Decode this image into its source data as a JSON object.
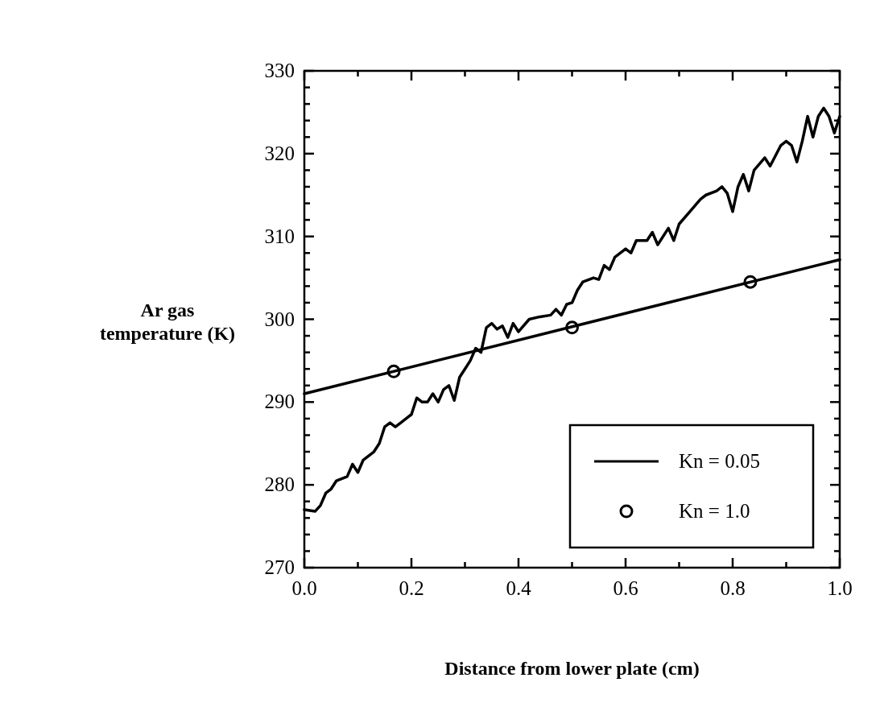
{
  "chart_data": {
    "type": "line",
    "xlabel": "Distance from lower plate (cm)",
    "ylabel": "Ar gas temperature (K)",
    "xlim": [
      0,
      1
    ],
    "ylim": [
      270,
      330
    ],
    "xticks": [
      {
        "value": 0,
        "label": "0.0"
      },
      {
        "value": 0.1,
        "label": null
      },
      {
        "value": 0.2,
        "label": "0.2"
      },
      {
        "value": 0.3,
        "label": null
      },
      {
        "value": 0.4,
        "label": "0.4"
      },
      {
        "value": 0.5,
        "label": null
      },
      {
        "value": 0.6,
        "label": "0.6"
      },
      {
        "value": 0.7,
        "label": null
      },
      {
        "value": 0.8,
        "label": "0.8"
      },
      {
        "value": 0.9,
        "label": null
      },
      {
        "value": 1,
        "label": "1.0"
      }
    ],
    "yticks": [
      270,
      {
        "value": 272,
        "label": null
      },
      {
        "value": 274,
        "label": null
      },
      {
        "value": 276,
        "label": null
      },
      {
        "value": 278,
        "label": null
      },
      280,
      {
        "value": 282,
        "label": null
      },
      {
        "value": 284,
        "label": null
      },
      {
        "value": 286,
        "label": null
      },
      {
        "value": 288,
        "label": null
      },
      290,
      {
        "value": 292,
        "label": null
      },
      {
        "value": 294,
        "label": null
      },
      {
        "value": 296,
        "label": null
      },
      {
        "value": 298,
        "label": null
      },
      300,
      {
        "value": 302,
        "label": null
      },
      {
        "value": 304,
        "label": null
      },
      {
        "value": 306,
        "label": null
      },
      {
        "value": 308,
        "label": null
      },
      310,
      {
        "value": 312,
        "label": null
      },
      {
        "value": 314,
        "label": null
      },
      {
        "value": 316,
        "label": null
      },
      {
        "value": 318,
        "label": null
      },
      320,
      {
        "value": 322,
        "label": null
      },
      {
        "value": 324,
        "label": null
      },
      {
        "value": 326,
        "label": null
      },
      {
        "value": 328,
        "label": null
      },
      330
    ],
    "legend": "bottom right",
    "series": [
      {
        "name": "Kn = 0.05",
        "color": "#000000",
        "marker": "none",
        "line_style": "solid",
        "x": [
          0,
          0.02,
          0.03,
          0.04,
          0.05,
          0.06,
          0.08,
          0.09,
          0.1,
          0.11,
          0.13,
          0.14,
          0.15,
          0.16,
          0.17,
          0.18,
          0.19,
          0.2,
          0.21,
          0.22,
          0.23,
          0.24,
          0.25,
          0.26,
          0.27,
          0.28,
          0.29,
          0.3,
          0.31,
          0.32,
          0.33,
          0.34,
          0.35,
          0.36,
          0.37,
          0.38,
          0.39,
          0.4,
          0.42,
          0.44,
          0.46,
          0.47,
          0.48,
          0.49,
          0.5,
          0.51,
          0.52,
          0.54,
          0.55,
          0.56,
          0.57,
          0.58,
          0.6,
          0.61,
          0.62,
          0.64,
          0.65,
          0.66,
          0.68,
          0.69,
          0.7,
          0.72,
          0.74,
          0.75,
          0.77,
          0.78,
          0.79,
          0.8,
          0.81,
          0.82,
          0.83,
          0.84,
          0.86,
          0.87,
          0.89,
          0.9,
          0.91,
          0.92,
          0.93,
          0.94,
          0.95,
          0.96,
          0.97,
          0.98,
          0.99,
          1
        ],
        "values": [
          277,
          276.8,
          277.5,
          279,
          279.5,
          280.5,
          281,
          282.5,
          281.5,
          283,
          284,
          285,
          287,
          287.5,
          287,
          287.5,
          288,
          288.5,
          290.5,
          290,
          290,
          291,
          290,
          291.5,
          292,
          290.2,
          293,
          294,
          295,
          296.5,
          296,
          299,
          299.5,
          298.8,
          299.2,
          297.8,
          299.5,
          298.5,
          300,
          300.3,
          300.5,
          301.2,
          300.5,
          301.8,
          302,
          303.5,
          304.5,
          305,
          304.8,
          306.5,
          306,
          307.5,
          308.5,
          308,
          309.5,
          309.5,
          310.5,
          309,
          311,
          309.5,
          311.5,
          313,
          314.5,
          315,
          315.5,
          316,
          315.2,
          313,
          316,
          317.5,
          315.5,
          318,
          319.5,
          318.5,
          321,
          321.5,
          321,
          319,
          321.5,
          324.5,
          322,
          324.5,
          325.5,
          324.5,
          322.5,
          324.5
        ]
      },
      {
        "type": "line",
        "color": "#000000",
        "marker": "none",
        "line_style": "solid",
        "x": [
          0,
          1
        ],
        "values": [
          291,
          307.2
        ]
      },
      {
        "name": "Kn = 1.0",
        "type": "scatter",
        "color": "#000000",
        "marker": "circle",
        "x": [
          0.167,
          0.5,
          0.833
        ],
        "values": [
          293.7,
          299,
          304.5
        ]
      }
    ]
  }
}
